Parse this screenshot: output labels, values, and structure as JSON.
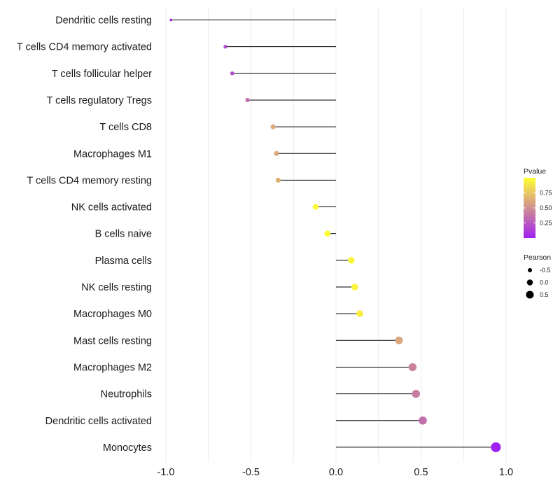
{
  "chart_data": {
    "type": "lollipop",
    "title": "",
    "xlabel": "",
    "ylabel": "",
    "xlim": [
      -1.0,
      1.0
    ],
    "xticks": [
      -1.0,
      -0.5,
      0.0,
      0.5,
      1.0
    ],
    "xtick_labels": [
      "-1.0",
      "-0.5",
      "0.0",
      "0.5",
      "1.0"
    ],
    "categories": [
      "Dendritic cells resting",
      "T cells CD4 memory activated",
      "T cells follicular helper",
      "T cells regulatory  Tregs",
      "T cells CD8",
      "Macrophages M1",
      "T cells CD4 memory resting",
      "NK cells activated",
      "B cells naive",
      "Plasma cells",
      "NK cells resting",
      "Macrophages M0",
      "Mast cells resting",
      "Macrophages M2",
      "Neutrophils",
      "Dendritic cells activated",
      "Monocytes"
    ],
    "pearson": [
      -0.97,
      -0.65,
      -0.61,
      -0.52,
      -0.37,
      -0.35,
      -0.34,
      -0.12,
      -0.05,
      0.09,
      0.11,
      0.14,
      0.37,
      0.45,
      0.47,
      0.51,
      0.94
    ],
    "pvalue": [
      0.01,
      0.2,
      0.2,
      0.36,
      0.62,
      0.62,
      0.65,
      0.98,
      0.99,
      0.95,
      0.95,
      0.92,
      0.6,
      0.44,
      0.42,
      0.36,
      0.01
    ],
    "legend": {
      "color_title": "Pvalue",
      "color_range": [
        0.0,
        1.0
      ],
      "color_ticks": [
        0.25,
        0.5,
        0.75
      ],
      "color_tick_labels": [
        "0.25",
        "0.50",
        "0.75"
      ],
      "colors": [
        "#a020f0",
        "#ffff33"
      ],
      "size_title": "Pearson",
      "size_ticks": [
        -0.5,
        0.0,
        0.5
      ],
      "size_tick_labels": [
        "-0.5",
        "0.0",
        "0.5"
      ],
      "position": "right"
    }
  }
}
